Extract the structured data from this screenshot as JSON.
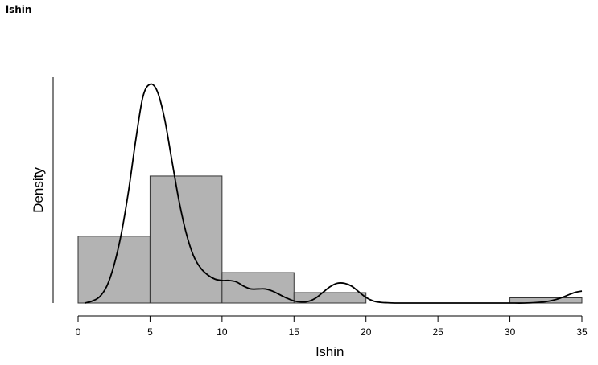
{
  "header": {
    "title": "lshin"
  },
  "chart_data": {
    "type": "bar",
    "subtype": "histogram-with-density",
    "title": "",
    "xlabel": "lshin",
    "ylabel": "Density",
    "xlim": [
      0,
      35
    ],
    "ylim": [
      0,
      0.16
    ],
    "x_ticks": [
      0,
      5,
      10,
      15,
      20,
      25,
      30,
      35
    ],
    "y_ticks_shown": false,
    "grid": false,
    "bins": [
      {
        "start": 0,
        "end": 5,
        "density": 0.0474
      },
      {
        "start": 5,
        "end": 10,
        "density": 0.09
      },
      {
        "start": 10,
        "end": 15,
        "density": 0.0216
      },
      {
        "start": 15,
        "end": 20,
        "density": 0.0074
      },
      {
        "start": 20,
        "end": 25,
        "density": 0
      },
      {
        "start": 25,
        "end": 30,
        "density": 0
      },
      {
        "start": 30,
        "end": 35,
        "density": 0.0037
      }
    ],
    "density_curve": {
      "x": [
        0.5,
        1,
        1.5,
        2,
        2.5,
        3,
        3.5,
        4,
        4.5,
        5,
        5.5,
        6,
        6.5,
        7,
        7.5,
        8,
        8.5,
        9,
        9.5,
        10,
        10.5,
        11,
        11.5,
        12,
        12.5,
        13,
        13.5,
        14,
        14.5,
        15,
        15.5,
        16,
        16.5,
        17,
        17.5,
        18,
        18.5,
        19,
        19.5,
        20,
        20.5,
        21,
        21.5,
        22,
        23,
        24,
        25,
        26,
        27,
        28,
        29,
        30,
        31,
        32,
        32.5,
        33,
        33.5,
        34,
        34.5,
        35
      ],
      "y": [
        0,
        0.0015,
        0.0045,
        0.012,
        0.027,
        0.049,
        0.079,
        0.115,
        0.146,
        0.155,
        0.15,
        0.131,
        0.102,
        0.073,
        0.05,
        0.034,
        0.025,
        0.02,
        0.017,
        0.016,
        0.016,
        0.015,
        0.012,
        0.01,
        0.01,
        0.01,
        0.0085,
        0.006,
        0.0035,
        0.0015,
        0.0008,
        0.0012,
        0.0035,
        0.0075,
        0.0115,
        0.014,
        0.014,
        0.012,
        0.008,
        0.004,
        0.0015,
        0.0005,
        0.0002,
        0,
        0,
        0,
        0,
        0,
        0,
        0,
        0,
        0,
        0,
        0.0005,
        0.001,
        0.002,
        0.0035,
        0.0055,
        0.0075,
        0.0085
      ]
    },
    "colors": {
      "bar_fill": "#b3b3b3",
      "bar_stroke": "#333333",
      "curve": "#000000",
      "axis": "#000000"
    }
  }
}
